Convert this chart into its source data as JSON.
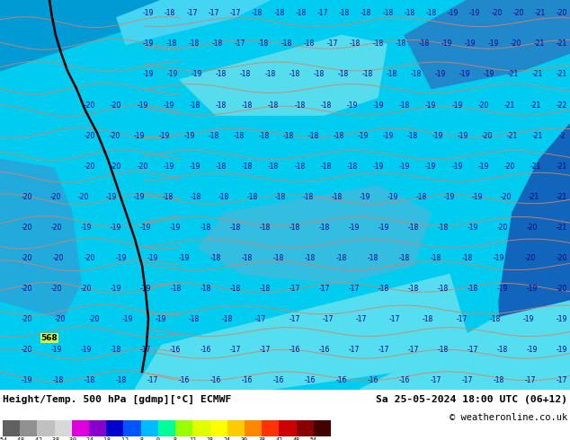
{
  "title_left": "Height/Temp. 500 hPa [gdmp][°C] ECMWF",
  "title_right": "Sa 25-05-2024 18:00 UTC (06+12)",
  "copyright": "© weatheronline.co.uk",
  "colorbar_ticks": [
    -54,
    -48,
    -42,
    -38,
    -30,
    -24,
    -18,
    -12,
    -8,
    0,
    8,
    12,
    18,
    24,
    30,
    38,
    42,
    48,
    54
  ],
  "colorbar_labels": [
    "-54",
    "-48",
    "-42",
    "-38",
    "-30",
    "-24",
    "-18",
    "-12",
    "-8",
    "0",
    "8",
    "12",
    "18",
    "24",
    "30",
    "38",
    "42",
    "48",
    "54"
  ],
  "colorbar_colors": [
    "#606060",
    "#909090",
    "#c0c0c0",
    "#d8d8d8",
    "#dd00dd",
    "#8800cc",
    "#0000cc",
    "#0055ff",
    "#00bbff",
    "#00ff99",
    "#99ff00",
    "#ddff00",
    "#ffff00",
    "#ffcc00",
    "#ff8800",
    "#ff3300",
    "#cc0000",
    "#880000",
    "#440000"
  ],
  "bg_color": "#00bfff",
  "figsize": [
    6.34,
    4.9
  ],
  "dpi": 100,
  "map_numbers": [
    [
      -19,
      -18,
      -17,
      -17,
      -17,
      -18,
      -18,
      -18,
      -17,
      -18,
      -18,
      -18,
      -18,
      -18,
      -19,
      -19,
      -20,
      -20,
      -21,
      -20
    ],
    [
      -19,
      -18,
      -18,
      -18,
      -17,
      -18,
      -18,
      -18,
      -17,
      -18,
      -18,
      -18,
      -18,
      -19,
      -19,
      -19,
      -20,
      -21,
      -21
    ],
    [
      -19,
      -19,
      -19,
      -18,
      -18,
      -18,
      -18,
      -18,
      -18,
      -18,
      -18,
      -18,
      -19,
      -19,
      -19,
      -21,
      -21,
      -21
    ],
    [
      -20,
      -20,
      -19,
      -19,
      -18,
      -18,
      -18,
      -18,
      -18,
      -18,
      -19,
      -19,
      -18,
      -19,
      -19,
      -20,
      -21,
      -21,
      -22
    ],
    [
      -20,
      -20,
      -19,
      -19,
      -19,
      -18,
      -18,
      -18,
      -18,
      -18,
      -18,
      -19,
      -19,
      -18,
      -19,
      -19,
      -20,
      -21,
      -21,
      -2
    ],
    [
      -20,
      -20,
      -20,
      -19,
      -19,
      -18,
      -18,
      -18,
      -18,
      -18,
      -18,
      -19,
      -19,
      -19,
      -19,
      -19,
      -20,
      -21,
      -21
    ],
    [
      -20,
      -20,
      -20,
      -19,
      -19,
      -18,
      -18,
      -18,
      -18,
      -18,
      -18,
      -18,
      -19,
      -19,
      -18,
      -19,
      -19,
      -20,
      -21,
      -21
    ],
    [
      -20,
      -20,
      -19,
      -19,
      -19,
      -19,
      -18,
      -18,
      -18,
      -18,
      -18,
      -19,
      -19,
      -18,
      -18,
      -19,
      -20,
      -20,
      -21
    ],
    [
      -20,
      -20,
      -20,
      -19,
      -19,
      -19,
      -18,
      -18,
      -18,
      -18,
      -18,
      -18,
      -18,
      -18,
      -18,
      -19,
      -20,
      -20
    ],
    [
      -20,
      -20,
      -20,
      -19,
      -19,
      -18,
      -18,
      -18,
      -18,
      -17,
      -17,
      -17,
      -18,
      -18,
      -18,
      -18,
      -19,
      -19,
      -20
    ],
    [
      -20,
      -20,
      -20,
      -19,
      -19,
      -18,
      -18,
      -17,
      -17,
      -17,
      -17,
      -17,
      -18,
      -17,
      -18,
      -19,
      -19
    ],
    [
      -20,
      -19,
      -19,
      -18,
      -17,
      -16,
      -16,
      -17,
      -17,
      -16,
      -16,
      -17,
      -17,
      -17,
      -18,
      -17,
      -18,
      -19,
      -19
    ],
    [
      -19,
      -18,
      -18,
      -18,
      -17,
      -16,
      -16,
      -16,
      -16,
      -16,
      -16,
      -16,
      -16,
      -17,
      -17,
      -18,
      -17,
      -17
    ]
  ],
  "number_color": "#00008b",
  "contour_black_color": "#000000",
  "contour_salmon_color": "#e08060"
}
